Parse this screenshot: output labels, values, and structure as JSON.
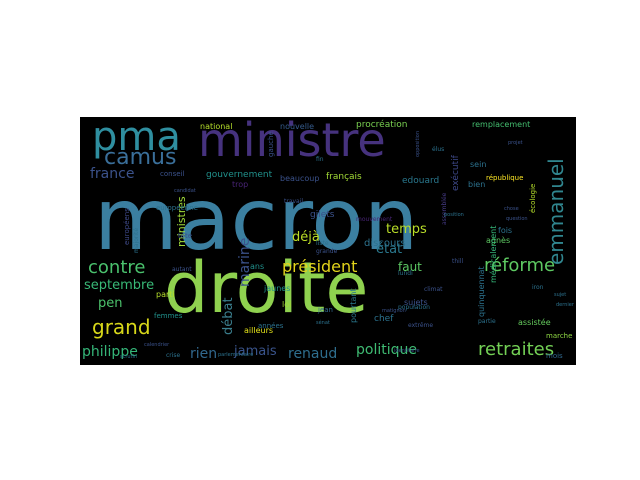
{
  "word_cloud": {
    "background": "#000000",
    "words": [
      {
        "text": "macron",
        "color": "#3b7fa0"
      },
      {
        "text": "droite",
        "color": "#8fd14f"
      },
      {
        "text": "ministre",
        "color": "#46327e"
      },
      {
        "text": "pma",
        "color": "#2f8fa0"
      },
      {
        "text": "camus",
        "color": "#3a6f9a"
      },
      {
        "text": "emmanuel",
        "color": "#30868f"
      },
      {
        "text": "réforme",
        "color": "#5ec962"
      },
      {
        "text": "contre",
        "color": "#4ac16d"
      },
      {
        "text": "grand",
        "color": "#d8d81a"
      },
      {
        "text": "président",
        "color": "#e2d31a"
      },
      {
        "text": "retraites",
        "color": "#73d055"
      },
      {
        "text": "philippe",
        "color": "#35b779"
      },
      {
        "text": "politique",
        "color": "#3fbc73"
      },
      {
        "text": "renaud",
        "color": "#2e6e8e"
      },
      {
        "text": "rien",
        "color": "#31688e"
      },
      {
        "text": "jamais",
        "color": "#3a548c"
      },
      {
        "text": "france",
        "color": "#3b528b"
      },
      {
        "text": "septembre",
        "color": "#38b977"
      },
      {
        "text": "pen",
        "color": "#4cc26c"
      },
      {
        "text": "temps",
        "color": "#b9de28"
      },
      {
        "text": "état",
        "color": "#2a788e"
      },
      {
        "text": "déjà",
        "color": "#bddf26"
      },
      {
        "text": "faut",
        "color": "#5cc863"
      },
      {
        "text": "marine",
        "color": "#3b528b"
      },
      {
        "text": "débat",
        "color": "#3b7f8e"
      },
      {
        "text": "ministres",
        "color": "#a0da39"
      },
      {
        "text": "gouvernement",
        "color": "#21918c"
      },
      {
        "text": "national",
        "color": "#b5de2b"
      },
      {
        "text": "nouvelle",
        "color": "#365c8d"
      },
      {
        "text": "procréation",
        "color": "#7ad151"
      },
      {
        "text": "remplacement",
        "color": "#44bf70"
      },
      {
        "text": "écologie",
        "color": "#b5de2b"
      },
      {
        "text": "exécutif",
        "color": "#3e4989"
      },
      {
        "text": "bien",
        "color": "#2c728e"
      },
      {
        "text": "république",
        "color": "#fde725"
      },
      {
        "text": "edouard",
        "color": "#2a788e"
      },
      {
        "text": "français",
        "color": "#a2da37"
      },
      {
        "text": "beaucoup",
        "color": "#3b528b"
      },
      {
        "text": "européenne",
        "color": "#2c728e"
      },
      {
        "text": "européens",
        "color": "#3e4a89"
      },
      {
        "text": "conseil",
        "color": "#3b528b"
      },
      {
        "text": "trop",
        "color": "#482475"
      },
      {
        "text": "tête",
        "color": "#3b528b"
      },
      {
        "text": "fois",
        "color": "#2c728e"
      },
      {
        "text": "agnès",
        "color": "#5ec962"
      },
      {
        "text": "sein",
        "color": "#2c728e"
      },
      {
        "text": "ans",
        "color": "#21918c"
      },
      {
        "text": "chef",
        "color": "#2c728e"
      },
      {
        "text": "loi",
        "color": "#a2da37"
      },
      {
        "text": "gilets",
        "color": "#3b528b"
      },
      {
        "text": "jaunes",
        "color": "#21918c"
      },
      {
        "text": "années",
        "color": "#2c728e"
      },
      {
        "text": "jean",
        "color": "#31688e"
      },
      {
        "text": "parti",
        "color": "#b5de2b"
      },
      {
        "text": "femmes",
        "color": "#21918c"
      },
      {
        "text": "ailleurs",
        "color": "#e5e419"
      },
      {
        "text": "pourtant",
        "color": "#2a788e"
      },
      {
        "text": "sujets",
        "color": "#3b528b"
      },
      {
        "text": "assistée",
        "color": "#65cb5e"
      },
      {
        "text": "marche",
        "color": "#8fd744"
      },
      {
        "text": "mois",
        "color": "#31688e"
      },
      {
        "text": "discours",
        "color": "#2c728e"
      },
      {
        "text": "médicalement",
        "color": "#35b779"
      },
      {
        "text": "quinquennat",
        "color": "#2c728e"
      },
      {
        "text": "assemblée",
        "color": "#443983"
      },
      {
        "text": "majorité",
        "color": "#2c728e"
      },
      {
        "text": "autant",
        "color": "#3b528b"
      },
      {
        "text": "crise",
        "color": "#2c728e"
      },
      {
        "text": "climat",
        "color": "#3b528b"
      },
      {
        "text": "population",
        "color": "#2c728e"
      },
      {
        "text": "extrême",
        "color": "#3b528b"
      },
      {
        "text": "gauche",
        "color": "#3b528b"
      },
      {
        "text": "fin",
        "color": "#2c728e"
      },
      {
        "text": "travail",
        "color": "#3b528b"
      },
      {
        "text": "mouvement",
        "color": "#482475"
      },
      {
        "text": "liste",
        "color": "#2c728e"
      },
      {
        "text": "grande",
        "color": "#3b528b"
      },
      {
        "text": "lundi",
        "color": "#2c728e"
      },
      {
        "text": "thill",
        "color": "#3b528b"
      },
      {
        "text": "iron",
        "color": "#2c728e"
      },
      {
        "text": "question",
        "color": "#3b528b"
      },
      {
        "text": "élus",
        "color": "#2c728e"
      },
      {
        "text": "projet",
        "color": "#3b528b"
      },
      {
        "text": "partie",
        "color": "#2c728e"
      },
      {
        "text": "candidat",
        "color": "#3b528b"
      },
      {
        "text": "scrutin",
        "color": "#2c728e"
      },
      {
        "text": "identitaire",
        "color": "#3b528b"
      },
      {
        "text": "parlementaire",
        "color": "#2c728e"
      },
      {
        "text": "calendrier",
        "color": "#3b528b"
      },
      {
        "text": "dernier",
        "color": "#2c728e"
      },
      {
        "text": "chose",
        "color": "#3b528b"
      },
      {
        "text": "sujet",
        "color": "#2c728e"
      },
      {
        "text": "matignon",
        "color": "#3b528b"
      },
      {
        "text": "sénat",
        "color": "#2c728e"
      },
      {
        "text": "opposition",
        "color": "#3b528b"
      },
      {
        "text": "position",
        "color": "#2c728e"
      }
    ]
  }
}
